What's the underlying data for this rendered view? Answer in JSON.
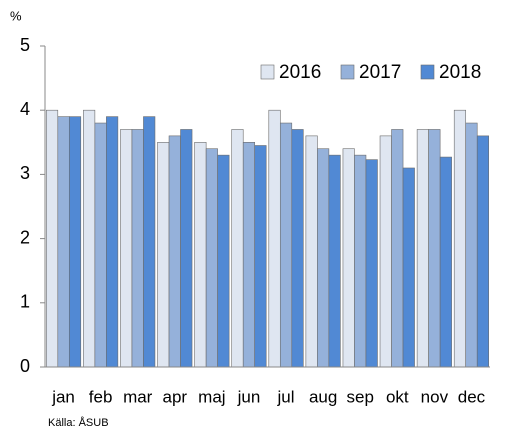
{
  "chart_data": {
    "type": "bar",
    "y_label": "%",
    "source": "Källa: ÅSUB",
    "categories": [
      "jan",
      "feb",
      "mar",
      "apr",
      "maj",
      "jun",
      "jul",
      "aug",
      "sep",
      "okt",
      "nov",
      "dec"
    ],
    "series": [
      {
        "name": "2016",
        "color": "#dfe6f1",
        "values": [
          4.0,
          4.0,
          3.7,
          3.5,
          3.5,
          3.7,
          4.0,
          3.6,
          3.4,
          3.6,
          3.7,
          4.0
        ]
      },
      {
        "name": "2017",
        "color": "#95b1da",
        "values": [
          3.9,
          3.8,
          3.7,
          3.6,
          3.4,
          3.5,
          3.8,
          3.4,
          3.3,
          3.7,
          3.7,
          3.8
        ]
      },
      {
        "name": "2018",
        "color": "#5189d4",
        "values": [
          3.9,
          3.9,
          3.9,
          3.7,
          3.3,
          3.45,
          3.7,
          3.3,
          3.23,
          3.1,
          3.27,
          3.6
        ]
      }
    ],
    "ylim": [
      0,
      5
    ],
    "yticks": [
      0,
      1,
      2,
      3,
      4,
      5
    ],
    "legend": "top-right"
  }
}
